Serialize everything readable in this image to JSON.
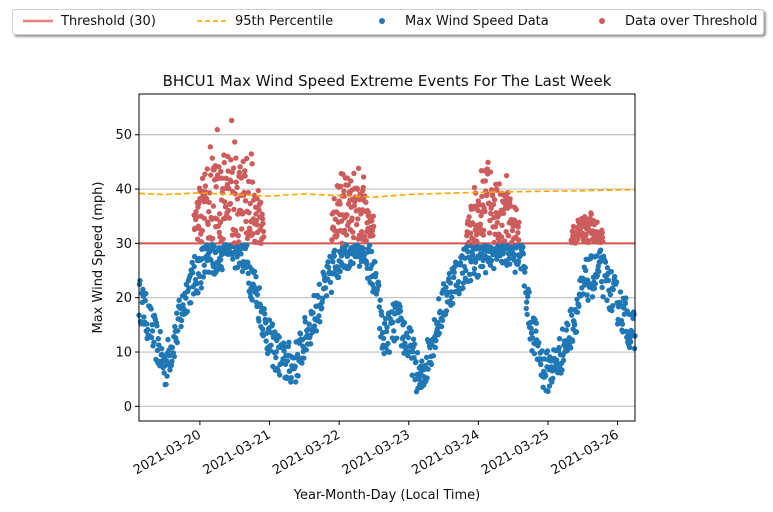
{
  "chart_data": {
    "type": "scatter",
    "title": "BHCU1 Max Wind Speed Extreme Events For The Last Week",
    "xlabel": "Year-Month-Day (Local Time)",
    "ylabel": "Max Wind Speed (mph)",
    "xlim": [
      "2021-03-19 03:00",
      "2021-03-26 06:00"
    ],
    "ylim": [
      -2.7,
      57.5
    ],
    "yticks": [
      0,
      10,
      20,
      30,
      40,
      50
    ],
    "xticks": [
      "2021-03-20",
      "2021-03-21",
      "2021-03-22",
      "2021-03-23",
      "2021-03-24",
      "2021-03-25",
      "2021-03-26"
    ],
    "grid": "y",
    "legend_position": "top (above plot)",
    "threshold": 30,
    "series": [
      {
        "name": "Threshold (30)",
        "kind": "hline",
        "value": 30,
        "color": "#f08080"
      },
      {
        "name": "95th Percentile",
        "kind": "dashed-line",
        "color": "#ffa500",
        "points": [
          [
            "2021-03-19 03:00",
            39.2
          ],
          [
            "2021-03-19 12:00",
            39.0
          ],
          [
            "2021-03-20 00:00",
            39.3
          ],
          [
            "2021-03-20 12:00",
            39.0
          ],
          [
            "2021-03-21 00:00",
            38.7
          ],
          [
            "2021-03-21 12:00",
            39.1
          ],
          [
            "2021-03-22 00:00",
            38.8
          ],
          [
            "2021-03-22 12:00",
            38.5
          ],
          [
            "2021-03-23 00:00",
            39.0
          ],
          [
            "2021-03-23 12:00",
            39.2
          ],
          [
            "2021-03-24 00:00",
            39.4
          ],
          [
            "2021-03-24 12:00",
            39.5
          ],
          [
            "2021-03-25 00:00",
            39.6
          ],
          [
            "2021-03-25 12:00",
            39.7
          ],
          [
            "2021-03-26 06:00",
            39.9
          ]
        ]
      },
      {
        "name": "Max Wind Speed Data",
        "kind": "scatter",
        "color": "#1f77b4",
        "profile": [
          [
            "2021-03-19 03:00",
            20
          ],
          [
            "2021-03-19 09:00",
            12
          ],
          [
            "2021-03-19 12:00",
            7
          ],
          [
            "2021-03-19 16:00",
            14
          ],
          [
            "2021-03-19 20:00",
            22
          ],
          [
            "2021-03-20 01:00",
            26
          ],
          [
            "2021-03-20 10:00",
            30
          ],
          [
            "2021-03-20 14:00",
            29
          ],
          [
            "2021-03-20 19:00",
            22
          ],
          [
            "2021-03-21 00:00",
            12
          ],
          [
            "2021-03-21 05:00",
            8
          ],
          [
            "2021-03-21 09:00",
            8
          ],
          [
            "2021-03-21 14:00",
            15
          ],
          [
            "2021-03-21 21:00",
            24
          ],
          [
            "2021-03-22 01:00",
            29
          ],
          [
            "2021-03-22 09:00",
            29
          ],
          [
            "2021-03-22 13:00",
            22
          ],
          [
            "2021-03-22 15:00",
            12
          ],
          [
            "2021-03-22 20:00",
            16
          ],
          [
            "2021-03-23 01:00",
            10
          ],
          [
            "2021-03-23 04:00",
            4
          ],
          [
            "2021-03-23 09:00",
            14
          ],
          [
            "2021-03-23 14:00",
            22
          ],
          [
            "2021-03-23 21:00",
            27
          ],
          [
            "2021-03-24 08:00",
            30
          ],
          [
            "2021-03-24 15:00",
            28
          ],
          [
            "2021-03-24 18:00",
            15
          ],
          [
            "2021-03-24 23:00",
            6
          ],
          [
            "2021-03-25 03:00",
            8
          ],
          [
            "2021-03-25 07:00",
            13
          ],
          [
            "2021-03-25 13:00",
            23
          ],
          [
            "2021-03-25 18:00",
            25
          ],
          [
            "2021-03-25 23:00",
            20
          ],
          [
            "2021-03-26 06:00",
            13
          ]
        ]
      },
      {
        "name": "Data over Threshold",
        "kind": "scatter",
        "color": "#cd5c5c",
        "clusters": [
          {
            "start": "2021-03-19 22:00",
            "end": "2021-03-20 22:00",
            "min": 30,
            "max": 55
          },
          {
            "start": "2021-03-21 21:30",
            "end": "2021-03-22 12:00",
            "min": 30,
            "max": 49
          },
          {
            "start": "2021-03-23 20:00",
            "end": "2021-03-24 14:00",
            "min": 30,
            "max": 47
          },
          {
            "start": "2021-03-25 08:00",
            "end": "2021-03-25 19:00",
            "min": 30,
            "max": 37
          }
        ]
      }
    ]
  }
}
